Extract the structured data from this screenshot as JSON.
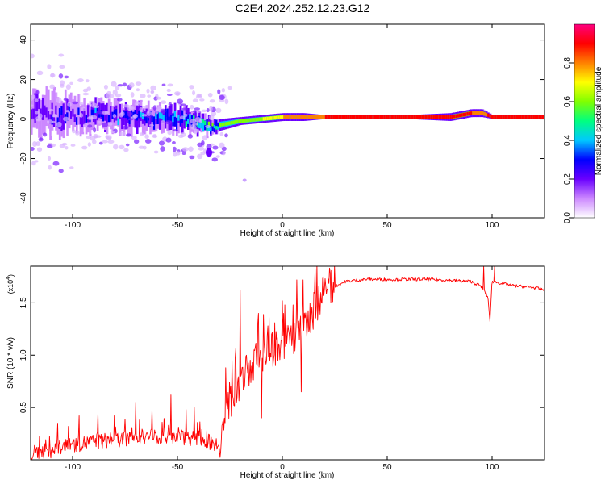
{
  "title": "C2E4.2024.252.12.23.G12",
  "chart_data": [
    {
      "type": "heatmap",
      "xlabel": "Height of straight line (km)",
      "ylabel": "Frequency (Hz)",
      "xlim": [
        -120,
        125
      ],
      "ylim": [
        -50,
        48
      ],
      "xticks": [
        -100,
        -50,
        0,
        50,
        100
      ],
      "yticks": [
        -40,
        -20,
        0,
        20,
        40
      ],
      "colorbar": {
        "label": "Normalized spectral amplitude",
        "range": [
          0.0,
          1.0
        ],
        "ticks": [
          "0.0",
          "0.2",
          "0.4",
          "0.6",
          "0.8"
        ],
        "tick_values": [
          0.0,
          0.2,
          0.4,
          0.6,
          0.8
        ],
        "colors": [
          "#ffffff",
          "#cc88ff",
          "#6a00ff",
          "#0000ff",
          "#00c8ff",
          "#00ff80",
          "#80ff00",
          "#ffff00",
          "#ff8000",
          "#ff0000",
          "#ff0080"
        ]
      },
      "ridge": {
        "x": [
          -120,
          -110,
          -100,
          -90,
          -80,
          -70,
          -60,
          -50,
          -40,
          -35,
          -30,
          -20,
          -10,
          0,
          10,
          20,
          40,
          60,
          80,
          90,
          95,
          100,
          110,
          125
        ],
        "freq": [
          4,
          3,
          2,
          2,
          1,
          1,
          0,
          0,
          -2,
          -4,
          -3,
          -1,
          0,
          1,
          1,
          1,
          1,
          1,
          1,
          3,
          3,
          1,
          1,
          1
        ],
        "amplitude": [
          0.25,
          0.3,
          0.3,
          0.35,
          0.35,
          0.35,
          0.4,
          0.45,
          0.5,
          0.55,
          0.6,
          0.65,
          0.7,
          0.8,
          0.85,
          0.9,
          0.95,
          0.95,
          0.95,
          0.9,
          0.85,
          0.95,
          0.95,
          0.95
        ],
        "spread": [
          10,
          10,
          8,
          7,
          7,
          7,
          6,
          6,
          5,
          4,
          3,
          2,
          2,
          2,
          2,
          1,
          1,
          1,
          2,
          2,
          2,
          1,
          1,
          1
        ]
      }
    },
    {
      "type": "line",
      "xlabel": "Height of straight line (km)",
      "ylabel": "SNR (10 * v/v)",
      "y_multiplier": "(x10",
      "y_multiplier_exp": "4",
      "y_multiplier_close": ")",
      "xlim": [
        -120,
        125
      ],
      "ylim": [
        0,
        1.85
      ],
      "xticks": [
        -100,
        -50,
        0,
        50,
        100
      ],
      "yticks": [
        0.5,
        1.0,
        1.5
      ],
      "ytick_labels": [
        "0.5",
        "1.0",
        "1.5"
      ],
      "color": "#ff0000",
      "series": [
        {
          "x": [
            -120,
            -110,
            -100,
            -90,
            -80,
            -70,
            -60,
            -50,
            -40,
            -35,
            -30,
            -25,
            -20,
            -15,
            -10,
            -5,
            0,
            5,
            10,
            15,
            20,
            25,
            30,
            40,
            50,
            60,
            70,
            80,
            90,
            95,
            98,
            99,
            100,
            105,
            110,
            120,
            125
          ],
          "y": [
            0.04,
            0.07,
            0.12,
            0.15,
            0.17,
            0.19,
            0.2,
            0.2,
            0.18,
            0.15,
            0.12,
            0.5,
            0.65,
            0.85,
            0.95,
            1.0,
            1.05,
            1.12,
            1.2,
            1.38,
            1.55,
            1.65,
            1.7,
            1.72,
            1.72,
            1.72,
            1.72,
            1.71,
            1.7,
            1.65,
            1.55,
            1.32,
            1.7,
            1.68,
            1.66,
            1.64,
            1.62
          ]
        }
      ],
      "peaks": {
        "x": [
          -107,
          -97,
          -88,
          -80,
          -70,
          -62,
          -53,
          -46,
          -42,
          -36,
          -27,
          -24,
          -20,
          -17,
          -13,
          -10,
          -7,
          -5,
          0,
          5,
          7,
          9,
          10,
          12,
          15,
          96,
          99,
          101
        ],
        "y": [
          0.35,
          0.42,
          0.45,
          0.42,
          0.55,
          0.48,
          0.62,
          0.48,
          0.5,
          0.28,
          0.88,
          0.95,
          1.62,
          1.0,
          1.08,
          0.4,
          1.28,
          1.2,
          1.52,
          1.48,
          1.72,
          0.65,
          1.72,
          1.28,
          1.6,
          1.85,
          1.32,
          1.88
        ]
      }
    }
  ]
}
